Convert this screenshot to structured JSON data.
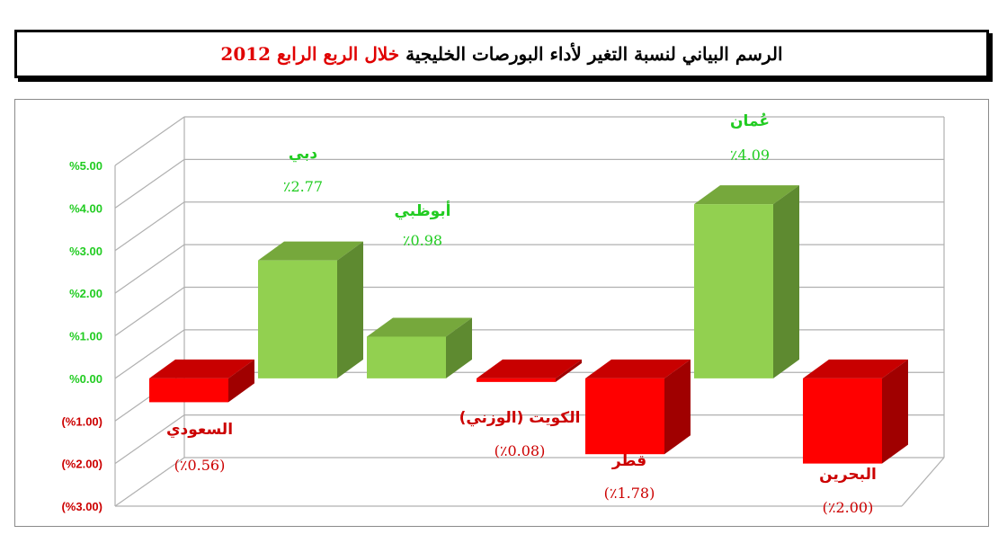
{
  "header": {
    "title_part1": "الرسم البياني لنسبة التغير لأداء البورصات الخليجية",
    "title_part2": "خلال الربع الرابع 2012"
  },
  "colors": {
    "positive_front": "#92d050",
    "positive_side": "#5e8a30",
    "positive_top": "#76a83c",
    "negative_front": "#ff0000",
    "negative_side": "#a00000",
    "negative_top": "#c80000",
    "positive_text": "#22cc22",
    "negative_text": "#cc0000",
    "grid": "#b0b0b0"
  },
  "chart_data": {
    "type": "bar",
    "categories": [
      "السعودي",
      "دبي",
      "أبوظبي",
      "الكويت (الوزني)",
      "قطر",
      "عُمان",
      "البحرين"
    ],
    "values": [
      -0.56,
      2.77,
      0.98,
      -0.08,
      -1.78,
      4.09,
      -2.0
    ],
    "value_labels": [
      "(٪0.56)",
      "٪2.77",
      "٪0.98",
      "(٪0.08)",
      "(٪1.78)",
      "٪4.09",
      "(٪2.00)"
    ],
    "y_tick_labels": [
      "%5.00",
      "%4.00",
      "%3.00",
      "%2.00",
      "%1.00",
      "%0.00",
      "(%1.00)",
      "(%2.00)",
      "(%3.00)"
    ],
    "ylim": [
      -3,
      5
    ],
    "grid": true,
    "three_d": true
  }
}
